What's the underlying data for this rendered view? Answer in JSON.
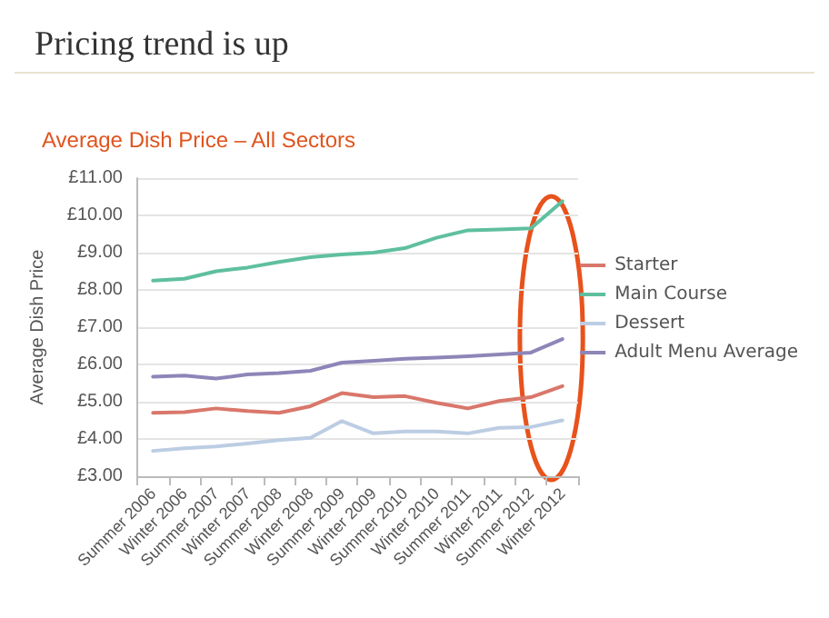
{
  "chart_data": {
    "type": "line",
    "title": "Pricing trend is up",
    "subtitle": "Average Dish Price – All Sectors",
    "ylabel": "Average Dish Price",
    "categories": [
      "Summer 2006",
      "Winter 2006",
      "Summer 2007",
      "Winter 2007",
      "Summer 2008",
      "Winter 2008",
      "Summer 2009",
      "Winter 2009",
      "Summer 2010",
      "Winter 2010",
      "Summer 2011",
      "Winter 2011",
      "Summer 2012",
      "Winter 2012"
    ],
    "series": [
      {
        "name": "Starter",
        "color": "#d9776b",
        "values": [
          4.7,
          4.72,
          4.82,
          4.75,
          4.7,
          4.88,
          5.23,
          5.12,
          5.15,
          4.97,
          4.82,
          5.02,
          5.12,
          5.42
        ]
      },
      {
        "name": "Main Course",
        "color": "#5fbf9f",
        "values": [
          8.25,
          8.3,
          8.5,
          8.6,
          8.75,
          8.88,
          8.95,
          9.0,
          9.12,
          9.4,
          9.6,
          9.62,
          9.65,
          10.38
        ]
      },
      {
        "name": "Dessert",
        "color": "#bccde3",
        "values": [
          3.68,
          3.75,
          3.8,
          3.88,
          3.97,
          4.03,
          4.48,
          4.15,
          4.2,
          4.2,
          4.15,
          4.3,
          4.32,
          4.5
        ]
      },
      {
        "name": "Adult Menu Average",
        "color": "#8e85b8",
        "values": [
          5.67,
          5.7,
          5.62,
          5.73,
          5.77,
          5.83,
          6.05,
          6.1,
          6.15,
          6.18,
          6.22,
          6.27,
          6.32,
          6.68
        ]
      }
    ],
    "ylim": [
      3,
      11
    ],
    "yticks": [
      {
        "value": 3,
        "label": "£3.00"
      },
      {
        "value": 4,
        "label": "£4.00"
      },
      {
        "value": 5,
        "label": "£5.00"
      },
      {
        "value": 6,
        "label": "£6.00"
      },
      {
        "value": 7,
        "label": "£7.00"
      },
      {
        "value": 8,
        "label": "£8.00"
      },
      {
        "value": 9,
        "label": "£9.00"
      },
      {
        "value": 10,
        "label": "£10.00"
      },
      {
        "value": 11,
        "label": "£11.00"
      }
    ],
    "grid": "y",
    "legend": "right",
    "marker": "none",
    "line_style": "solid"
  }
}
